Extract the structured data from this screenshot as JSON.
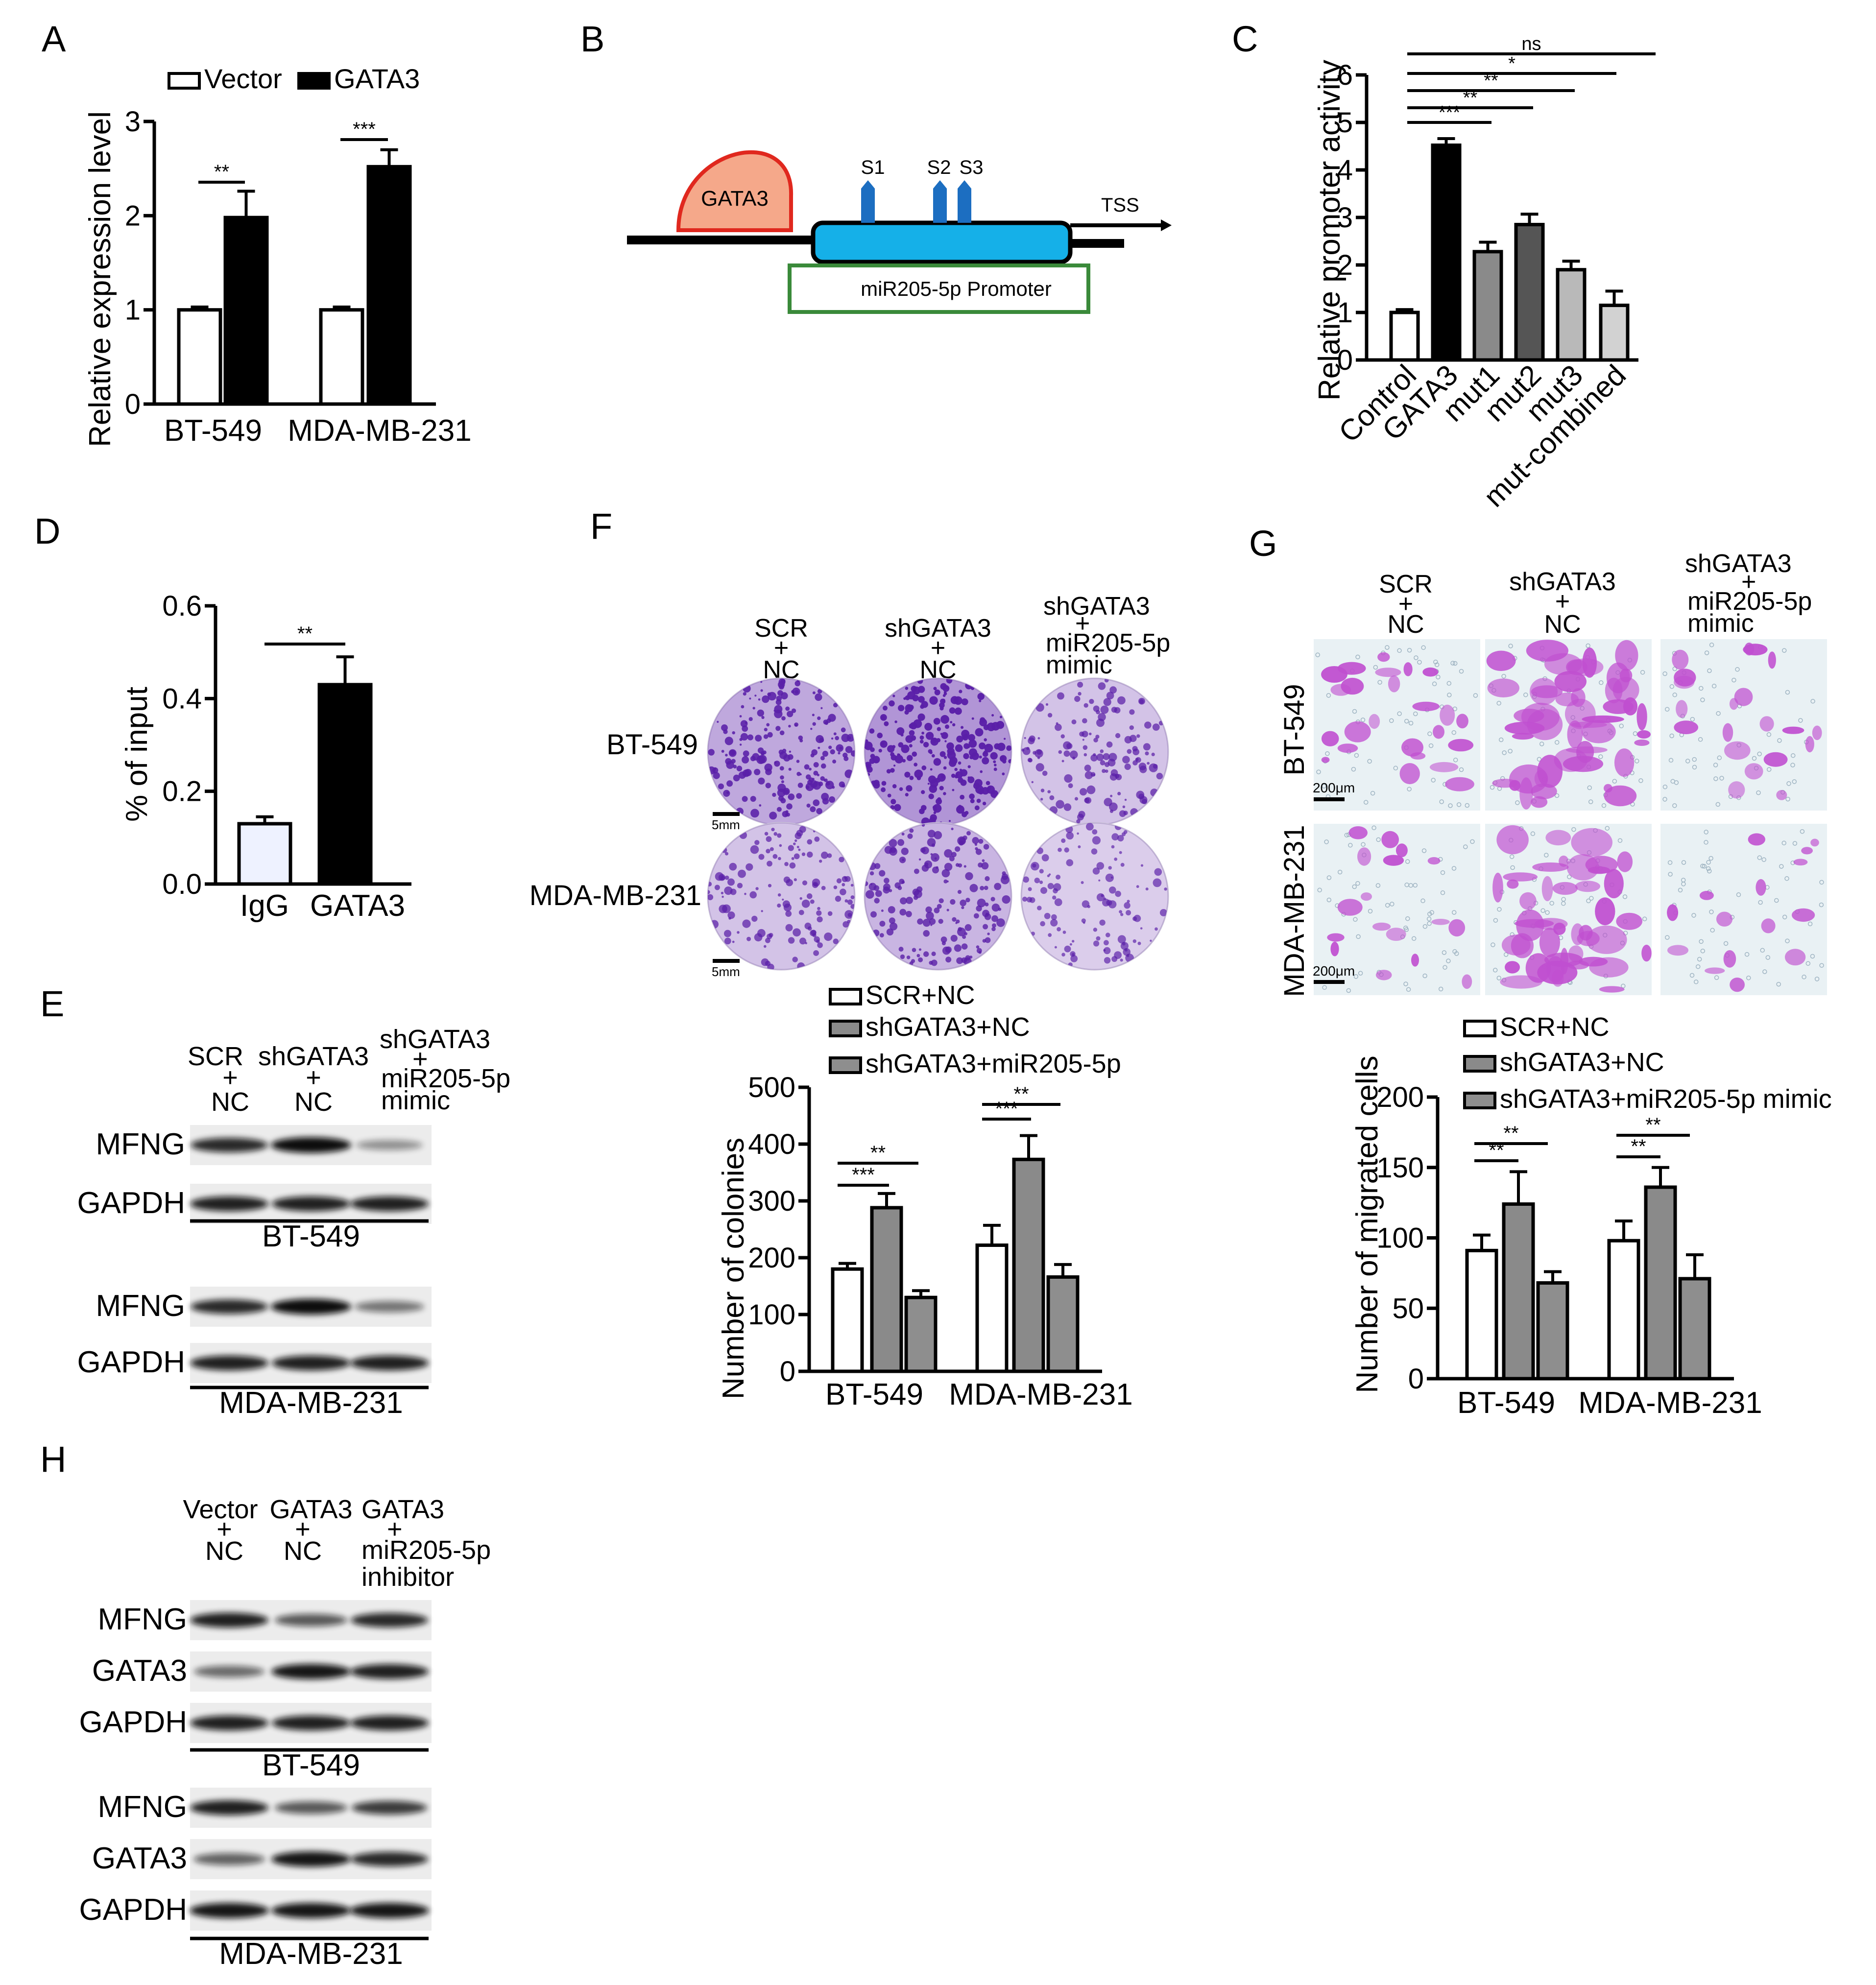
{
  "panel_labels": {
    "a": "A",
    "b": "B",
    "c": "C",
    "d": "D",
    "e": "E",
    "f": "F",
    "g": "G",
    "h": "H"
  },
  "colors": {
    "white_bar": "#ffffff",
    "black_bar": "#000000",
    "dark_gray": "#555555",
    "mid_gray": "#8a8a8a",
    "light_gray": "#b9b9b9",
    "lighter_gray": "#d2d2d2",
    "gata3_fill": "#f5a88a",
    "gata3_stroke": "#e0281e",
    "promoter_blue": "#15b0e8",
    "site_blue": "#1c6ec1",
    "promoter_green": "#3a8a3a",
    "crystal": "#5a1fa8",
    "cell_bg": "#e9f1f4",
    "cell_pink": "#c04fd0"
  },
  "chart_data": [
    {
      "id": "A",
      "type": "bar",
      "title": "",
      "ylabel": "Relative expression level",
      "xlabel": "",
      "ylim": [
        0,
        3
      ],
      "yticks": [
        "0",
        "1",
        "2",
        "3"
      ],
      "categories": [
        "BT-549",
        "MDA-MB-231"
      ],
      "series": [
        {
          "name": "Vector",
          "values": [
            1.0,
            1.0
          ],
          "errors": [
            0.03,
            0.03
          ]
        },
        {
          "name": "GATA3",
          "values": [
            1.98,
            2.52
          ],
          "errors": [
            0.28,
            0.18
          ]
        }
      ],
      "legend": [
        "Vector",
        "GATA3"
      ],
      "significance": [
        {
          "group": "BT-549",
          "label": "**"
        },
        {
          "group": "MDA-MB-231",
          "label": "***"
        }
      ]
    },
    {
      "id": "C",
      "type": "bar",
      "title": "",
      "ylabel": "Relative promoter activity",
      "xlabel": "",
      "ylim": [
        0,
        6
      ],
      "yticks": [
        "0",
        "1",
        "2",
        "3",
        "4",
        "5",
        "6"
      ],
      "categories": [
        "Control",
        "GATA3",
        "mut1",
        "mut2",
        "mut3",
        "mut-combined"
      ],
      "values": [
        1.0,
        4.52,
        2.28,
        2.85,
        1.9,
        1.15
      ],
      "errors": [
        0.06,
        0.14,
        0.2,
        0.22,
        0.18,
        0.3
      ],
      "significance": [
        "***",
        "**",
        "**",
        "*",
        "ns"
      ]
    },
    {
      "id": "D",
      "type": "bar",
      "title": "",
      "ylabel": "% of input",
      "xlabel": "",
      "ylim": [
        0,
        0.6
      ],
      "yticks": [
        "0.0",
        "0.2",
        "0.4",
        "0.6"
      ],
      "categories": [
        "IgG",
        "GATA3"
      ],
      "values": [
        0.13,
        0.43
      ],
      "errors": [
        0.015,
        0.06
      ],
      "significance": [
        "**"
      ]
    },
    {
      "id": "F",
      "type": "bar",
      "title": "",
      "ylabel": "Number of colonies",
      "xlabel": "",
      "ylim": [
        0,
        500
      ],
      "yticks": [
        "0",
        "100",
        "200",
        "300",
        "400",
        "500"
      ],
      "categories": [
        "BT-549",
        "MDA-MB-231"
      ],
      "series": [
        {
          "name": "SCR+NC",
          "values": [
            180,
            222
          ],
          "errors": [
            10,
            35
          ]
        },
        {
          "name": "shGATA3+NC",
          "values": [
            288,
            373
          ],
          "errors": [
            25,
            42
          ]
        },
        {
          "name": "shGATA3+miR205-5p",
          "values": [
            130,
            166
          ],
          "errors": [
            12,
            22
          ]
        }
      ],
      "legend": [
        "SCR+NC",
        "shGATA3+NC",
        "shGATA3+miR205-5p"
      ],
      "significance": [
        {
          "group": "BT-549",
          "labels": [
            "***",
            "**"
          ]
        },
        {
          "group": "MDA-MB-231",
          "labels": [
            "***",
            "**"
          ]
        }
      ]
    },
    {
      "id": "G",
      "type": "bar",
      "title": "",
      "ylabel": "Number of migrated cells",
      "xlabel": "",
      "ylim": [
        0,
        200
      ],
      "yticks": [
        "0",
        "50",
        "100",
        "150",
        "200"
      ],
      "categories": [
        "BT-549",
        "MDA-MB-231"
      ],
      "series": [
        {
          "name": "SCR+NC",
          "values": [
            91,
            98
          ],
          "errors": [
            11,
            14
          ]
        },
        {
          "name": "shGATA3+NC",
          "values": [
            124,
            136
          ],
          "errors": [
            23,
            14
          ]
        },
        {
          "name": "shGATA3+miR205-5p mimic",
          "values": [
            68,
            71
          ],
          "errors": [
            8,
            17
          ]
        }
      ],
      "legend": [
        "SCR+NC",
        "shGATA3+NC",
        "shGATA3+miR205-5p mimic"
      ],
      "significance": [
        {
          "group": "BT-549",
          "labels": [
            "**",
            "**"
          ]
        },
        {
          "group": "MDA-MB-231",
          "labels": [
            "**",
            "**"
          ]
        }
      ]
    }
  ],
  "panel_b": {
    "gata3": "GATA3",
    "sites": [
      "S1",
      "S2",
      "S3"
    ],
    "tss": "TSS",
    "promoter": "miR205-5p Promoter"
  },
  "panel_e": {
    "conditions": [
      [
        "SCR",
        "+",
        "NC"
      ],
      [
        "shGATA3",
        "+",
        "NC"
      ],
      [
        "shGATA3",
        "+",
        "miR205-5p",
        "mimic"
      ]
    ],
    "rows_top": [
      "MFNG",
      "GAPDH"
    ],
    "cell_top": "BT-549",
    "rows_bottom": [
      "MFNG",
      "GAPDH"
    ],
    "cell_bottom": "MDA-MB-231",
    "band_levels": {
      "MFNG_BT549": [
        0.85,
        1.0,
        0.3
      ],
      "GAPDH_BT549": [
        0.9,
        0.9,
        0.9
      ],
      "MFNG_MDA": [
        0.85,
        1.0,
        0.45
      ],
      "GAPDH_MDA": [
        0.9,
        0.9,
        0.9
      ]
    }
  },
  "panel_f_images": {
    "conditions": [
      [
        "SCR",
        "+",
        "NC"
      ],
      [
        "shGATA3",
        "+",
        "NC"
      ],
      [
        "shGATA3",
        "+",
        "miR205-5p",
        "mimic"
      ]
    ],
    "rows": [
      "BT-549",
      "MDA-MB-231"
    ],
    "scale": "5mm",
    "density": [
      [
        0.75,
        0.95,
        0.45
      ],
      [
        0.45,
        0.6,
        0.35
      ]
    ]
  },
  "panel_g_images": {
    "conditions": [
      [
        "SCR",
        "+",
        "NC"
      ],
      [
        "shGATA3",
        "+",
        "NC"
      ],
      [
        "shGATA3",
        "+",
        "miR205-5p",
        "mimic"
      ]
    ],
    "rows": [
      "BT-549",
      "MDA-MB-231"
    ],
    "scale": "200μm",
    "density": [
      [
        0.4,
        0.9,
        0.3
      ],
      [
        0.25,
        0.85,
        0.2
      ]
    ]
  },
  "panel_h": {
    "conditions": [
      [
        "Vector",
        "+",
        "NC"
      ],
      [
        "GATA3",
        "+",
        "NC"
      ],
      [
        "GATA3",
        "+",
        "miR205-5p",
        "inhibitor"
      ]
    ],
    "rows_top": [
      "MFNG",
      "GATA3",
      "GAPDH"
    ],
    "cell_top": "BT-549",
    "rows_bottom": [
      "MFNG",
      "GATA3",
      "GAPDH"
    ],
    "cell_bottom": "MDA-MB-231",
    "band_levels": {
      "MFNG_BT549": [
        0.9,
        0.6,
        0.85
      ],
      "GATA3_BT549": [
        0.5,
        0.95,
        0.9
      ],
      "GAPDH_BT549": [
        0.9,
        0.9,
        0.9
      ],
      "MFNG_MDA": [
        0.9,
        0.6,
        0.75
      ],
      "GATA3_MDA": [
        0.55,
        0.95,
        0.85
      ],
      "GAPDH_MDA": [
        0.95,
        0.95,
        0.95
      ]
    }
  }
}
